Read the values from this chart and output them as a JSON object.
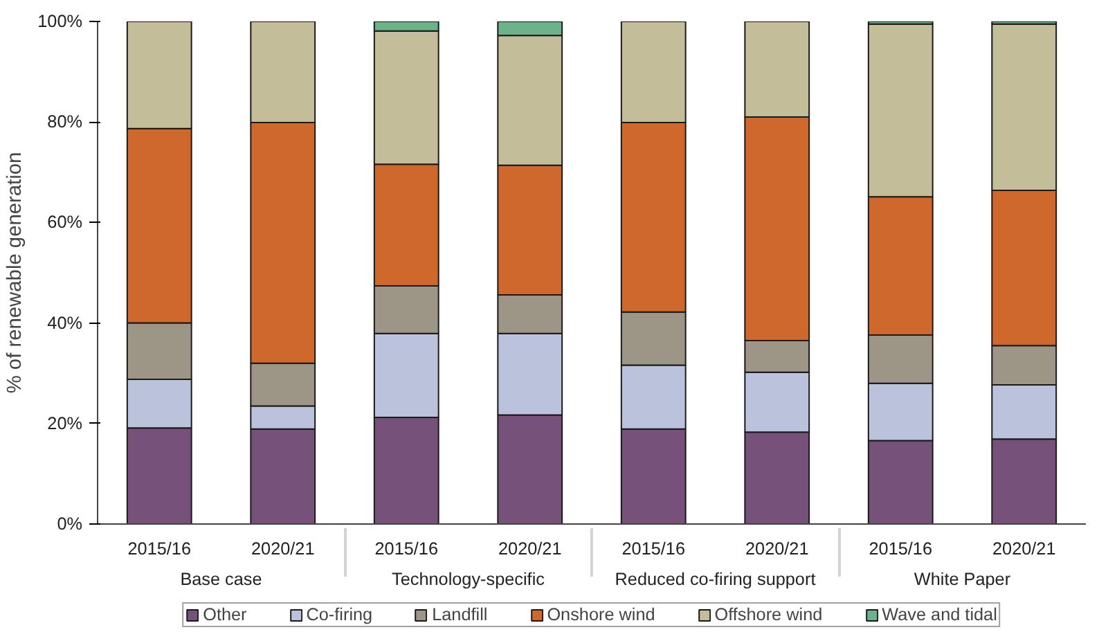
{
  "chart_data": {
    "type": "bar",
    "stacked": true,
    "ylabel": "% of renewable generation",
    "categories": [
      "2015/16",
      "2020/21",
      "2015/16",
      "2020/21",
      "2015/16",
      "2020/21",
      "2015/16",
      "2020/21"
    ],
    "annotations": [
      "Base case",
      "Technology-specific",
      "Reduced co-firing support",
      "White Paper"
    ],
    "ylim": [
      0,
      100
    ],
    "yticks": [
      {
        "value": 0,
        "label": "0%"
      },
      {
        "value": 20,
        "label": "20%"
      },
      {
        "value": 40,
        "label": "40%"
      },
      {
        "value": 60,
        "label": "60%"
      },
      {
        "value": 80,
        "label": "80%"
      },
      {
        "value": 100,
        "label": "100%"
      }
    ],
    "grid": false,
    "legend": "bottom",
    "series": [
      {
        "name": "Other",
        "color": "#765179",
        "values": [
          19.1,
          18.9,
          21.2,
          21.7,
          18.9,
          18.3,
          16.6,
          16.9
        ]
      },
      {
        "name": "Co-firing",
        "color": "#bbc3dc",
        "values": [
          9.7,
          4.6,
          16.7,
          16.2,
          12.7,
          11.9,
          11.4,
          10.8
        ]
      },
      {
        "name": "Landfill",
        "color": "#9d9586",
        "values": [
          11.2,
          8.5,
          9.5,
          7.7,
          10.6,
          6.3,
          9.6,
          7.8
        ]
      },
      {
        "name": "Onshore wind",
        "color": "#cf682c",
        "values": [
          38.7,
          47.9,
          24.2,
          25.8,
          37.7,
          44.5,
          27.5,
          30.9
        ]
      },
      {
        "name": "Offshore wind",
        "color": "#c3bd9a",
        "values": [
          21.3,
          20.1,
          26.5,
          25.8,
          20.1,
          19.0,
          34.4,
          33.1
        ]
      },
      {
        "name": "Wave and tidal",
        "color": "#6db38a",
        "values": [
          null,
          null,
          1.9,
          2.8,
          null,
          null,
          0.5,
          0.5
        ]
      }
    ]
  }
}
